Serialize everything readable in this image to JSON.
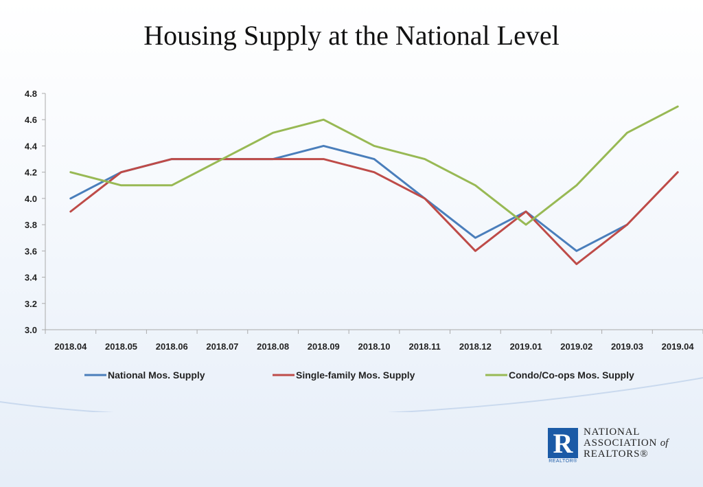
{
  "slide": {
    "title": "Housing Supply at the National Level"
  },
  "logo": {
    "line1": "NATIONAL",
    "line2": "ASSOCIATION",
    "line2_suffix": "of",
    "line3": "REALTORS®",
    "mark_letter": "R",
    "mark_caption": "REALTOR®",
    "color": "#1b5aa6"
  },
  "chart_data": {
    "type": "line",
    "title": "",
    "xlabel": "",
    "ylabel": "",
    "categories": [
      "2018.04",
      "2018.05",
      "2018.06",
      "2018.07",
      "2018.08",
      "2018.09",
      "2018.10",
      "2018.11",
      "2018.12",
      "2019.01",
      "2019.02",
      "2019.03",
      "2019.04"
    ],
    "ylim": [
      3.0,
      4.8
    ],
    "yticks": [
      "3.0",
      "3.2",
      "3.4",
      "3.6",
      "3.8",
      "4.0",
      "4.2",
      "4.4",
      "4.6",
      "4.8"
    ],
    "grid": false,
    "legend_position": "bottom",
    "series": [
      {
        "name": "National Mos. Supply",
        "color": "#4a7ebb",
        "values": [
          4.0,
          4.2,
          4.3,
          4.3,
          4.3,
          4.4,
          4.3,
          4.0,
          3.7,
          3.9,
          3.6,
          3.8,
          null
        ]
      },
      {
        "name": "Single-family Mos. Supply",
        "color": "#be4b48",
        "values": [
          3.9,
          4.2,
          4.3,
          4.3,
          4.3,
          4.3,
          4.2,
          4.0,
          3.6,
          3.9,
          3.5,
          3.8,
          4.2
        ]
      },
      {
        "name": "Condo/Co-ops Mos. Supply",
        "color": "#98b954",
        "values": [
          4.2,
          4.1,
          4.1,
          4.3,
          4.5,
          4.6,
          4.4,
          4.3,
          4.1,
          3.8,
          4.1,
          4.5,
          4.7
        ]
      }
    ]
  }
}
